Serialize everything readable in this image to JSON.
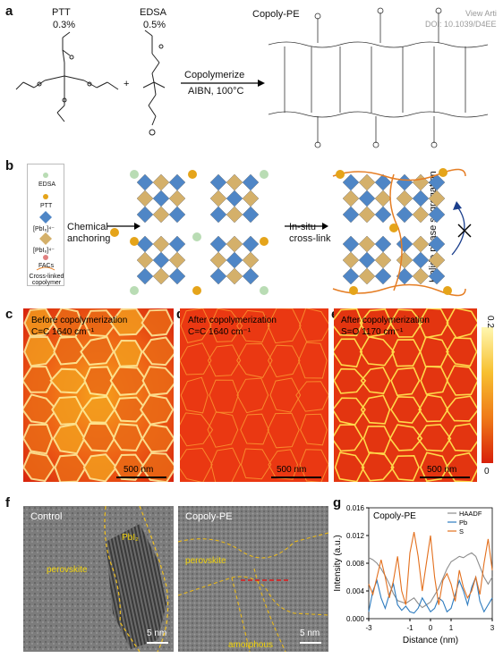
{
  "watermark": {
    "line1": "View Arti",
    "line2": "DOI: 10.1039/D4EE"
  },
  "panel_a": {
    "label": "a",
    "ptt_name": "PTT",
    "ptt_pct": "0.3%",
    "edsa_name": "EDSA",
    "edsa_pct": "0.5%",
    "plus": "+",
    "arrow_top": "Copolymerize",
    "arrow_bottom": "AIBN, 100°C",
    "product": "Copoly-PE"
  },
  "panel_b": {
    "label": "b",
    "legend": [
      "EDSA",
      "PTT",
      "[PbI₆]⁴⁻",
      "[PbI₆]⁴⁻",
      "FACs",
      "Cross-linked copolymer"
    ],
    "step1_line1": "Chemical",
    "step1_line2": "anchoring",
    "step2_line1": "In-situ",
    "step2_line2": "cross-link",
    "side_label": "Halide phase segregation",
    "colors": {
      "blue": "#4f86c6",
      "tan": "#d4b06a",
      "green": "#b9dcb4",
      "gold": "#e5a41a",
      "orange": "#e57e25"
    }
  },
  "panel_c": {
    "label": "c",
    "line1": "Before copolymerization",
    "line2": "C=C 1640 cm⁻¹",
    "scale": "500 nm"
  },
  "panel_d": {
    "label": "d",
    "line1": "After copolymerization",
    "line2": "C=C 1640 cm⁻¹",
    "scale": "500 nm"
  },
  "panel_e": {
    "label": "e",
    "line1": "After copolymerization",
    "line2": "S=O 1170 cm⁻¹",
    "scale": "500 nm"
  },
  "colorbar": {
    "max": "0.2",
    "min": "0"
  },
  "panel_f": {
    "label": "f",
    "left_title": "Control",
    "left_phase1": "PbI₂",
    "left_phase2": "perovskite",
    "left_scale": "5 nm",
    "right_title": "Copoly-PE",
    "right_phase1": "perovskite",
    "right_phase2": "amorphous",
    "right_scale": "5 nm"
  },
  "panel_g": {
    "label": "g"
  },
  "chart_data": {
    "type": "line",
    "title": "Copoly-PE",
    "xlabel": "Distance (nm)",
    "ylabel": "Intensity (a.u.)",
    "xlim": [
      -3,
      3
    ],
    "ylim": [
      0,
      0.016
    ],
    "xticks": [
      "-3",
      "-1",
      "0",
      "1",
      "3"
    ],
    "xtick_values": [
      -3,
      -1,
      0,
      1,
      3
    ],
    "yticks": [
      "0.000",
      "0.004",
      "0.008",
      "0.012",
      "0.016"
    ],
    "ytick_values": [
      0,
      0.004,
      0.008,
      0.012,
      0.016
    ],
    "legend_position": "top-right",
    "series": [
      {
        "name": "HAADF",
        "color": "#8c8c8c",
        "x": [
          -3,
          -2.8,
          -2.6,
          -2.4,
          -2.2,
          -2.0,
          -1.8,
          -1.6,
          -1.4,
          -1.2,
          -1.0,
          -0.8,
          -0.6,
          -0.4,
          -0.2,
          0,
          0.2,
          0.4,
          0.6,
          0.8,
          1.0,
          1.2,
          1.4,
          1.6,
          1.8,
          2.0,
          2.2,
          2.4,
          2.6,
          2.8,
          3
        ],
        "y": [
          0.0088,
          0.0085,
          0.008,
          0.0072,
          0.0062,
          0.005,
          0.0036,
          0.0026,
          0.0024,
          0.0022,
          0.0026,
          0.003,
          0.0022,
          0.0016,
          0.002,
          0.0024,
          0.0034,
          0.0044,
          0.0058,
          0.0072,
          0.0082,
          0.0086,
          0.009,
          0.0088,
          0.0092,
          0.0095,
          0.009,
          0.0075,
          0.006,
          0.005,
          0.006
        ]
      },
      {
        "name": "Pb",
        "color": "#2d7bbf",
        "x": [
          -3,
          -2.8,
          -2.6,
          -2.4,
          -2.2,
          -2.0,
          -1.8,
          -1.6,
          -1.4,
          -1.2,
          -1.0,
          -0.8,
          -0.6,
          -0.4,
          -0.2,
          0,
          0.2,
          0.4,
          0.6,
          0.8,
          1.0,
          1.2,
          1.4,
          1.6,
          1.8,
          2.0,
          2.2,
          2.4,
          2.6,
          2.8,
          3
        ],
        "y": [
          0.001,
          0.004,
          0.0055,
          0.003,
          0.0015,
          0.0035,
          0.005,
          0.002,
          0.0012,
          0.0018,
          0.001,
          0.0008,
          0.0015,
          0.003,
          0.002,
          0.001,
          0.0015,
          0.003,
          0.0025,
          0.001,
          0.0015,
          0.0035,
          0.0055,
          0.004,
          0.002,
          0.0045,
          0.006,
          0.0025,
          0.001,
          0.002,
          0.003
        ]
      },
      {
        "name": "S",
        "color": "#e3701e",
        "x": [
          -3,
          -2.8,
          -2.6,
          -2.4,
          -2.2,
          -2.0,
          -1.8,
          -1.6,
          -1.4,
          -1.2,
          -1.0,
          -0.8,
          -0.6,
          -0.4,
          -0.2,
          0,
          0.2,
          0.4,
          0.6,
          0.8,
          1.0,
          1.2,
          1.4,
          1.6,
          1.8,
          2.0,
          2.2,
          2.4,
          2.6,
          2.8,
          3
        ],
        "y": [
          0.005,
          0.0035,
          0.006,
          0.0085,
          0.006,
          0.003,
          0.0055,
          0.009,
          0.004,
          0.002,
          0.0095,
          0.0125,
          0.009,
          0.004,
          0.008,
          0.012,
          0.006,
          0.002,
          0.0055,
          0.0065,
          0.005,
          0.0025,
          0.007,
          0.0045,
          0.003,
          0.004,
          0.006,
          0.0035,
          0.008,
          0.0115,
          0.007
        ]
      }
    ]
  }
}
